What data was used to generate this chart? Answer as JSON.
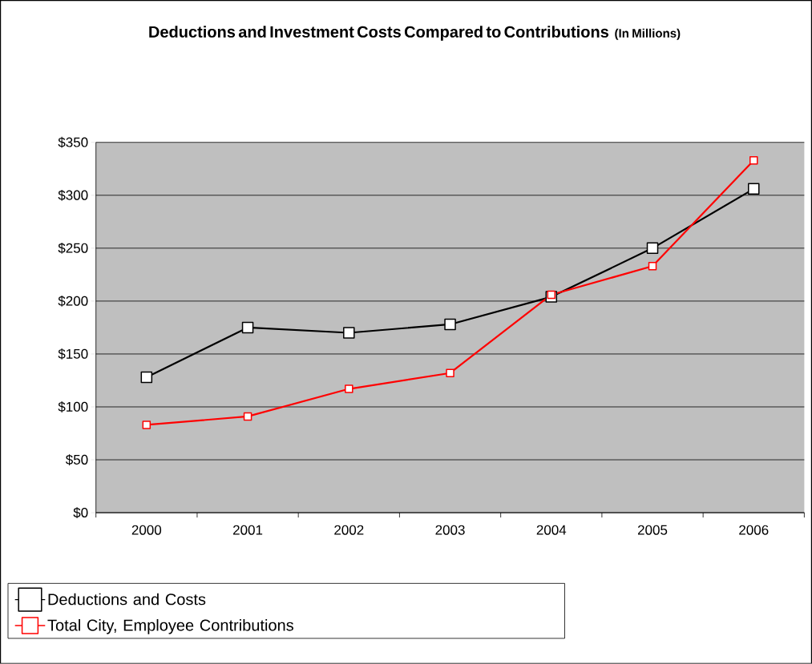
{
  "chart_data": {
    "type": "line",
    "title": "Deductions and Investment Costs Compared to Contributions",
    "subtitle": "(In Millions)",
    "categories": [
      "2000",
      "2001",
      "2002",
      "2003",
      "2004",
      "2005",
      "2006"
    ],
    "series": [
      {
        "name": "Deductions and Costs",
        "color": "#000000",
        "values": [
          128,
          175,
          170,
          178,
          204,
          250,
          306
        ]
      },
      {
        "name": "Total City,  Employee Contributions",
        "color": "#ff0000",
        "values": [
          83,
          91,
          117,
          132,
          206,
          233,
          333
        ]
      }
    ],
    "ylim": [
      0,
      350
    ],
    "yticks": [
      {
        "value": 0,
        "label": "$0"
      },
      {
        "value": 50,
        "label": "$50"
      },
      {
        "value": 100,
        "label": "$100"
      },
      {
        "value": 150,
        "label": "$150"
      },
      {
        "value": 200,
        "label": "$200"
      },
      {
        "value": 250,
        "label": "$250"
      },
      {
        "value": 300,
        "label": "$300"
      },
      {
        "value": 350,
        "label": "$350"
      }
    ],
    "grid": "y",
    "legend": "bottom",
    "marker": "square",
    "line_style": "solid"
  }
}
